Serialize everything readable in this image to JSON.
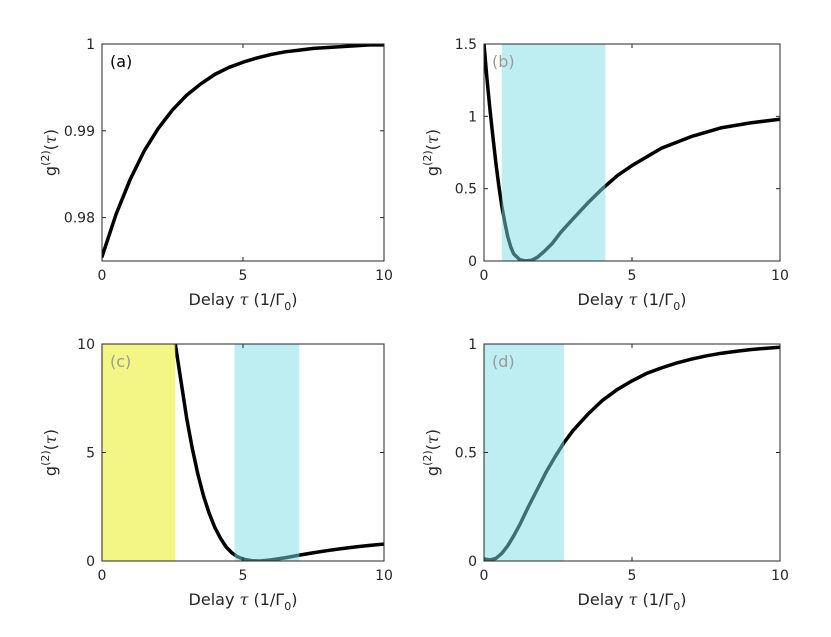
{
  "chart_data": [
    {
      "type": "line",
      "panel_label": "(a)",
      "panel_label_color": "#000000",
      "xlabel": {
        "pre": "Delay ",
        "sym": "τ",
        "post": " (1/Γ",
        "sub": "0",
        "close": ")"
      },
      "ylabel": {
        "pre": "g",
        "sup": "(2)",
        "mid": "(",
        "sym": "τ",
        "close": ")"
      },
      "xlim": [
        0,
        10
      ],
      "ylim": [
        0.975,
        1.0
      ],
      "xticks": [
        {
          "v": 0,
          "label": "0"
        },
        {
          "v": 5,
          "label": "5"
        },
        {
          "v": 10,
          "label": "10"
        }
      ],
      "yticks": [
        {
          "v": 0.98,
          "label": "0.98"
        },
        {
          "v": 0.99,
          "label": "0.99"
        },
        {
          "v": 1.0,
          "label": "1"
        }
      ],
      "grid": false,
      "bands": [],
      "series": [
        {
          "color": "#000000",
          "x": [
            0,
            0.5,
            1,
            1.5,
            2,
            2.5,
            3,
            3.5,
            4,
            4.5,
            5,
            5.5,
            6,
            6.5,
            7,
            7.5,
            8,
            8.5,
            9,
            9.5,
            10
          ],
          "y": [
            0.9755,
            0.9804,
            0.9844,
            0.9877,
            0.9903,
            0.9924,
            0.9941,
            0.9954,
            0.9965,
            0.9973,
            0.9979,
            0.9984,
            0.9988,
            0.9991,
            0.9993,
            0.9995,
            0.9996,
            0.9997,
            0.9998,
            0.9999,
            0.9999
          ]
        }
      ]
    },
    {
      "type": "line",
      "panel_label": "(b)",
      "panel_label_color": "#9a9a9a",
      "xlabel": {
        "pre": "Delay ",
        "sym": "τ",
        "post": " (1/Γ",
        "sub": "0",
        "close": ")"
      },
      "ylabel": {
        "pre": "g",
        "sup": "(2)",
        "mid": "(",
        "sym": "τ",
        "close": ")"
      },
      "xlim": [
        0,
        10
      ],
      "ylim": [
        0,
        1.5
      ],
      "xticks": [
        {
          "v": 0,
          "label": "0"
        },
        {
          "v": 5,
          "label": "5"
        },
        {
          "v": 10,
          "label": "10"
        }
      ],
      "yticks": [
        {
          "v": 0,
          "label": "0"
        },
        {
          "v": 0.5,
          "label": "0.5"
        },
        {
          "v": 1,
          "label": "1"
        },
        {
          "v": 1.5,
          "label": "1.5"
        }
      ],
      "grid": false,
      "bands": [
        {
          "x0": 0.6,
          "x1": 4.1,
          "color": "#7fdde6",
          "opacity": 0.5
        }
      ],
      "series": [
        {
          "color": "#000000",
          "x": [
            0,
            0.1,
            0.2,
            0.3,
            0.4,
            0.5,
            0.6,
            0.7,
            0.8,
            0.9,
            1.0,
            1.2,
            1.4,
            1.6,
            1.8,
            2.0,
            2.3,
            2.6,
            3.0,
            3.5,
            4.0,
            4.5,
            5.0,
            6.0,
            7.0,
            8.0,
            9.0,
            10.0
          ],
          "y": [
            1.5,
            1.26,
            1.05,
            0.86,
            0.68,
            0.52,
            0.38,
            0.27,
            0.17,
            0.1,
            0.05,
            0.01,
            0.0,
            0.005,
            0.025,
            0.06,
            0.12,
            0.2,
            0.29,
            0.4,
            0.5,
            0.59,
            0.66,
            0.78,
            0.86,
            0.92,
            0.955,
            0.98
          ]
        }
      ]
    },
    {
      "type": "line",
      "panel_label": "(c)",
      "panel_label_color": "#9a9a9a",
      "xlabel": {
        "pre": "Delay ",
        "sym": "τ",
        "post": " (1/Γ",
        "sub": "0",
        "close": ")"
      },
      "ylabel": {
        "pre": "g",
        "sup": "(2)",
        "mid": "(",
        "sym": "τ",
        "close": ")"
      },
      "xlim": [
        0,
        10
      ],
      "ylim": [
        0,
        10
      ],
      "xticks": [
        {
          "v": 0,
          "label": "0"
        },
        {
          "v": 5,
          "label": "5"
        },
        {
          "v": 10,
          "label": "10"
        }
      ],
      "yticks": [
        {
          "v": 0,
          "label": "0"
        },
        {
          "v": 5,
          "label": "5"
        },
        {
          "v": 10,
          "label": "10"
        }
      ],
      "grid": false,
      "bands": [
        {
          "x0": 0,
          "x1": 2.6,
          "color": "#f0f266",
          "opacity": 0.8
        },
        {
          "x0": 4.7,
          "x1": 7.0,
          "color": "#7fdde6",
          "opacity": 0.5
        }
      ],
      "series": [
        {
          "color": "#000000",
          "x": [
            2.6,
            2.8,
            3.0,
            3.2,
            3.4,
            3.6,
            3.8,
            4.0,
            4.2,
            4.4,
            4.6,
            4.8,
            5.0,
            5.3,
            5.6,
            6.0,
            6.5,
            7.0,
            7.5,
            8.0,
            8.5,
            9.0,
            9.5,
            10.0
          ],
          "y": [
            10.0,
            8.3,
            6.6,
            5.2,
            4.0,
            3.0,
            2.2,
            1.55,
            1.05,
            0.65,
            0.38,
            0.2,
            0.09,
            0.02,
            0.0,
            0.05,
            0.15,
            0.27,
            0.38,
            0.48,
            0.57,
            0.65,
            0.72,
            0.78
          ]
        }
      ]
    },
    {
      "type": "line",
      "panel_label": "(d)",
      "panel_label_color": "#9a9a9a",
      "xlabel": {
        "pre": "Delay ",
        "sym": "τ",
        "post": " (1/Γ",
        "sub": "0",
        "close": ")"
      },
      "ylabel": {
        "pre": "g",
        "sup": "(2)",
        "mid": "(",
        "sym": "τ",
        "close": ")"
      },
      "xlim": [
        0,
        10
      ],
      "ylim": [
        0,
        1
      ],
      "xticks": [
        {
          "v": 0,
          "label": "0"
        },
        {
          "v": 5,
          "label": "5"
        },
        {
          "v": 10,
          "label": "10"
        }
      ],
      "yticks": [
        {
          "v": 0,
          "label": "0"
        },
        {
          "v": 0.5,
          "label": "0.5"
        },
        {
          "v": 1,
          "label": "1"
        }
      ],
      "grid": false,
      "bands": [
        {
          "x0": 0,
          "x1": 2.7,
          "color": "#7fdde6",
          "opacity": 0.5
        }
      ],
      "series": [
        {
          "color": "#000000",
          "x": [
            0,
            0.2,
            0.4,
            0.6,
            0.8,
            1.0,
            1.2,
            1.5,
            1.8,
            2.1,
            2.4,
            2.7,
            3.0,
            3.5,
            4.0,
            4.5,
            5.0,
            5.5,
            6.0,
            6.5,
            7.0,
            7.5,
            8.0,
            8.5,
            9.0,
            9.5,
            10.0
          ],
          "y": [
            0.01,
            0.005,
            0.012,
            0.035,
            0.07,
            0.115,
            0.165,
            0.25,
            0.33,
            0.41,
            0.48,
            0.545,
            0.6,
            0.675,
            0.74,
            0.79,
            0.83,
            0.865,
            0.89,
            0.912,
            0.93,
            0.945,
            0.957,
            0.966,
            0.974,
            0.98,
            0.985
          ]
        }
      ]
    }
  ]
}
